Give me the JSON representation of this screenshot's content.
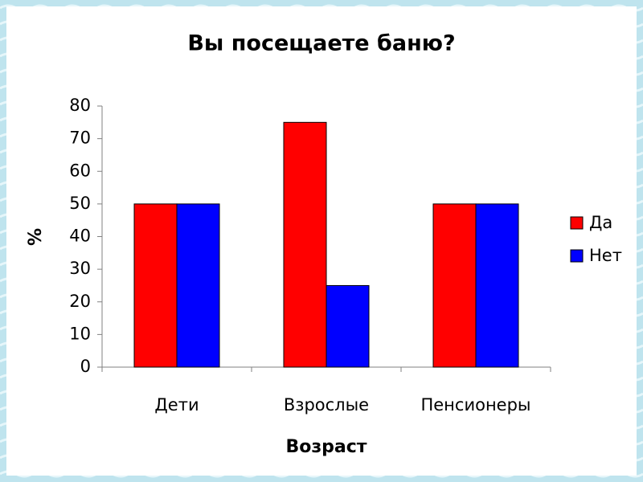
{
  "chart_data": {
    "type": "bar",
    "title": "Вы посещаете баню?",
    "x_label": "Возраст",
    "y_label": "%",
    "categories": [
      "Дети",
      "Взрослые",
      "Пенсионеры"
    ],
    "series": [
      {
        "name": "Да",
        "color": "#ff0000",
        "values": [
          50,
          75,
          50
        ]
      },
      {
        "name": "Нет",
        "color": "#0000ff",
        "values": [
          50,
          25,
          50
        ]
      }
    ],
    "ylim": [
      0,
      80
    ],
    "yticks": [
      0,
      10,
      20,
      30,
      40,
      50,
      60,
      70,
      80
    ],
    "grid": false,
    "legend": "right"
  }
}
